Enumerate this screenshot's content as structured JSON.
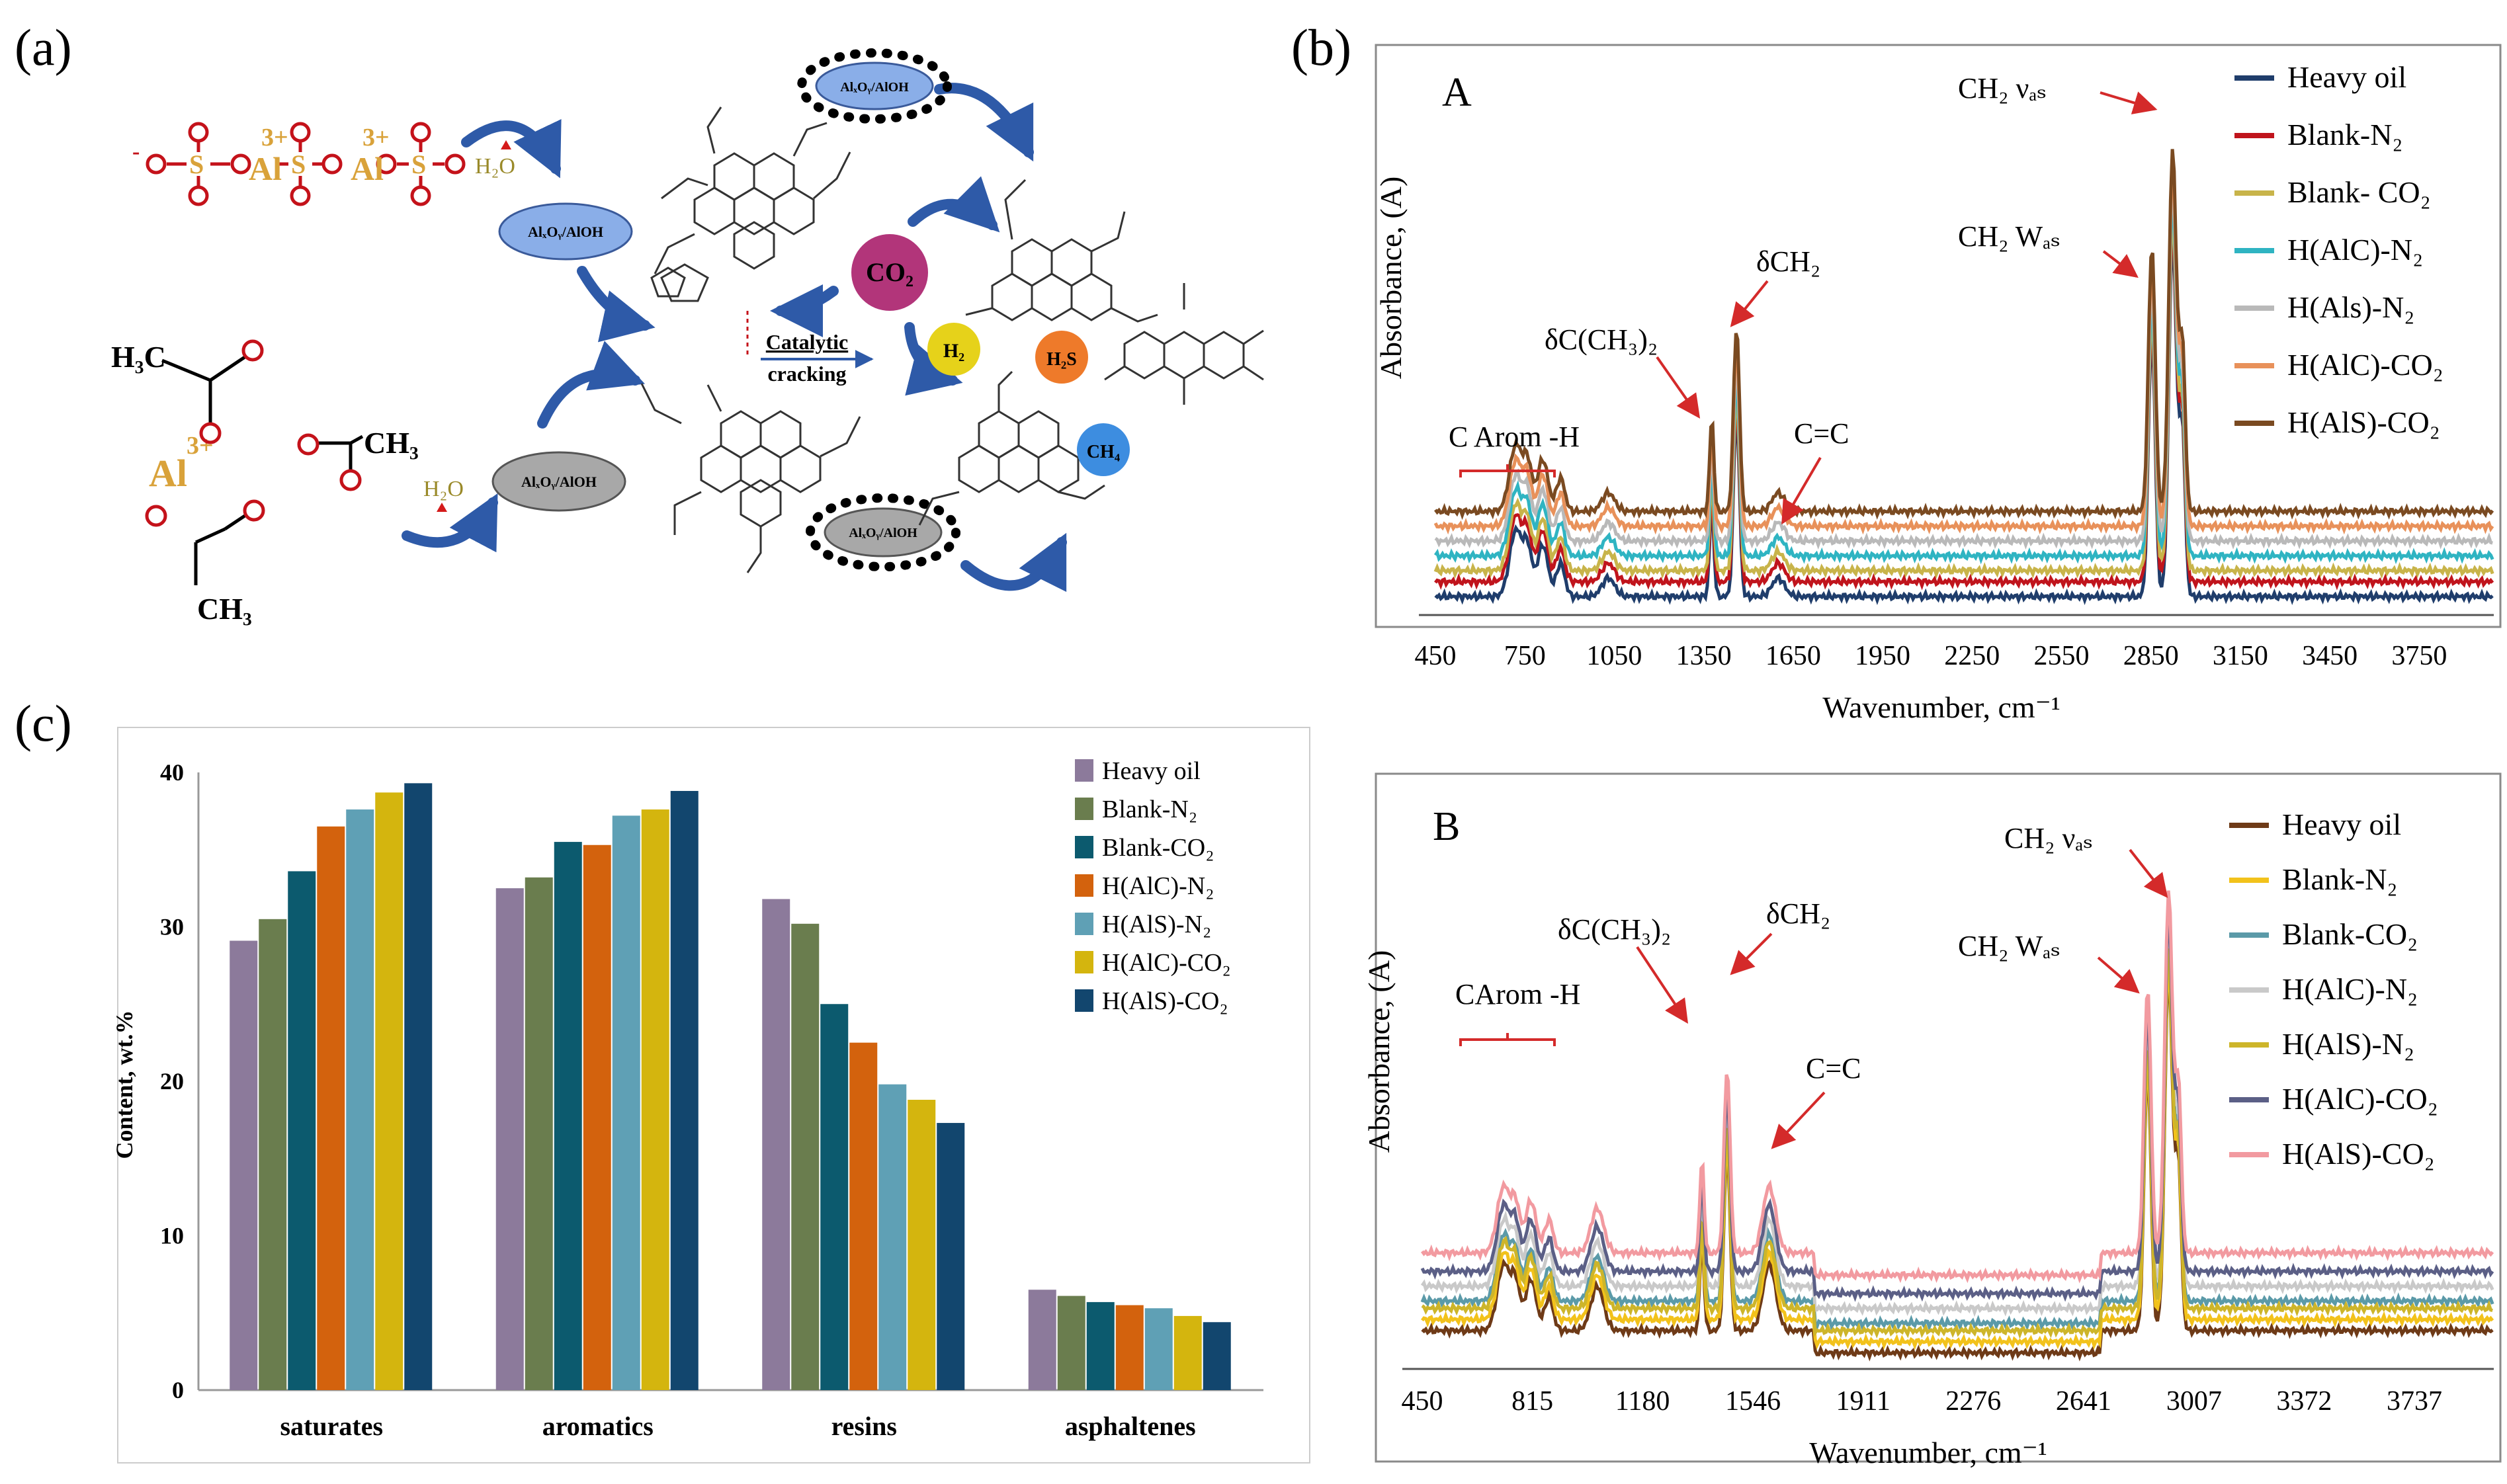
{
  "panel_labels": {
    "a": "(a)",
    "b": "(b)",
    "c": "(c)"
  },
  "panel_a": {
    "ions": {
      "al": "Al",
      "al_charge": "3+",
      "o": "O",
      "o_minus": "-",
      "s": "S"
    },
    "water": "H₂O",
    "acetate": {
      "h3c": "H₃C",
      "ch3": "CH₃",
      "ch3_bottom": "CH₃"
    },
    "oxide_label": "AlₓOᵧ/AlOH",
    "gases": {
      "co2": "CO₂",
      "h2": "H₂",
      "h2s": "H₂S",
      "ch4": "CH₄"
    },
    "cracking": {
      "line1": "Catalytic",
      "line2": "cracking"
    }
  },
  "chart_data": [
    {
      "id": "ftir-A",
      "type": "line",
      "panel_tag": "A",
      "xlabel": "Wavenumber, cm⁻¹",
      "ylabel": "Absorbance, (A)",
      "xlim": [
        450,
        4000
      ],
      "ticks": [
        "450",
        "750",
        "1050",
        "1350",
        "1650",
        "1950",
        "2250",
        "2550",
        "2850",
        "3150",
        "3450",
        "3750"
      ],
      "tick_values": [
        450,
        750,
        1050,
        1350,
        1650,
        1950,
        2250,
        2550,
        2850,
        3150,
        3450,
        3750
      ],
      "annotations": {
        "arom": "C Arom -H",
        "dcch3": "δC(CH₃)₂",
        "dch2": "δCH₂",
        "cc": "C=C",
        "ch2w": "CH₂ Wₐₛ",
        "ch2v": "CH₂ νₐₛ"
      },
      "series": [
        {
          "name": "Heavy oil",
          "color": "#1f3d6b",
          "baseline": 0.05
        },
        {
          "name": "Blank-N₂",
          "color": "#c0141c",
          "baseline": 0.09
        },
        {
          "name": "Blank- CO₂",
          "color": "#c8b44a",
          "baseline": 0.12
        },
        {
          "name": "H(AlC)-N₂",
          "color": "#2fb4c2",
          "baseline": 0.16
        },
        {
          "name": "H(Als)-N₂",
          "color": "#b9b9b9",
          "baseline": 0.2
        },
        {
          "name": "H(AlC)-CO₂",
          "color": "#e8915a",
          "baseline": 0.24
        },
        {
          "name": "H(AlS)-CO₂",
          "color": "#7a4a21",
          "baseline": 0.28
        }
      ]
    },
    {
      "id": "ftir-B",
      "type": "line",
      "panel_tag": "B",
      "xlabel": "Wavenumber, cm⁻¹",
      "ylabel": "Absorbance, (A)",
      "xlim": [
        450,
        4000
      ],
      "ticks": [
        "450",
        "815",
        "1180",
        "1546",
        "1911",
        "2276",
        "2641",
        "3007",
        "3372",
        "3737"
      ],
      "tick_values": [
        450,
        815,
        1180,
        1546,
        1911,
        2276,
        2641,
        3007,
        3372,
        3737
      ],
      "annotations": {
        "arom": "CArom -H",
        "dcch3": "δC(CH₃)₂",
        "dch2": "δCH₂",
        "cc": "C=C",
        "ch2w": "CH₂ Wₐₛ",
        "ch2v": "CH₂ νₐₛ"
      },
      "series": [
        {
          "name": "Heavy oil",
          "color": "#6e3a17",
          "baseline": 0.05
        },
        {
          "name": "Blank-N₂",
          "color": "#f2c21b",
          "baseline": 0.08
        },
        {
          "name": "Blank-CO₂",
          "color": "#5b9aa8",
          "baseline": 0.13
        },
        {
          "name": "H(AlC)-N₂",
          "color": "#c9c9c9",
          "baseline": 0.17
        },
        {
          "name": "H(AlS)-N₂",
          "color": "#cdb52a",
          "baseline": 0.11
        },
        {
          "name": "H(AlC)-CO₂",
          "color": "#5b5f86",
          "baseline": 0.21
        },
        {
          "name": "H(AlS)-CO₂",
          "color": "#f29aa0",
          "baseline": 0.26
        }
      ]
    },
    {
      "id": "sara-bar",
      "type": "bar",
      "ylabel": "Content, wt.%",
      "ylim": [
        0,
        40
      ],
      "yticks": [
        "0",
        "10",
        "20",
        "30",
        "40"
      ],
      "ytick_values": [
        0,
        10,
        20,
        30,
        40
      ],
      "categories": [
        "saturates",
        "aromatics",
        "resins",
        "asphaltenes"
      ],
      "series": [
        {
          "name": "Heavy oil",
          "color": "#8c7a9b",
          "values": [
            29.1,
            32.5,
            31.8,
            6.5
          ]
        },
        {
          "name": "Blank-N₂",
          "color": "#6a7d4e",
          "values": [
            30.5,
            33.2,
            30.2,
            6.1
          ]
        },
        {
          "name": "Blank-CO₂",
          "color": "#0c5a6e",
          "values": [
            33.6,
            35.5,
            25.0,
            5.7
          ]
        },
        {
          "name": "H(AlC)-N₂",
          "color": "#d3620d",
          "values": [
            36.5,
            35.3,
            22.5,
            5.5
          ]
        },
        {
          "name": "H(AlS)-N₂",
          "color": "#5fa0b5",
          "values": [
            37.6,
            37.2,
            19.8,
            5.3
          ]
        },
        {
          "name": "H(AlC)-CO₂",
          "color": "#d4b50e",
          "values": [
            38.7,
            37.6,
            18.8,
            4.8
          ]
        },
        {
          "name": "H(AlS)-CO₂",
          "color": "#12466e",
          "values": [
            39.3,
            38.8,
            17.3,
            4.4
          ]
        }
      ]
    }
  ]
}
